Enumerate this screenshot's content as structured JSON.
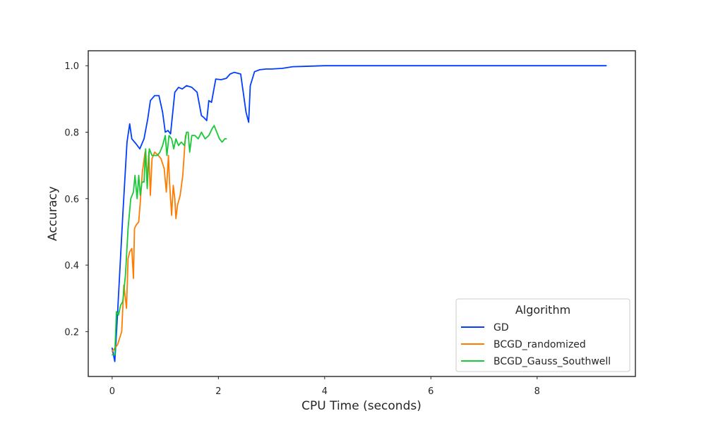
{
  "chart_data": {
    "type": "line",
    "title": "",
    "xlabel": "CPU Time (seconds)",
    "ylabel": "Accuracy",
    "xlim": [
      -0.45,
      9.85
    ],
    "ylim": [
      0.065,
      1.045
    ],
    "xticks": [
      0,
      2,
      4,
      6,
      8
    ],
    "yticks": [
      0.2,
      0.4,
      0.6,
      0.8,
      1.0
    ],
    "xtick_labels": [
      "0",
      "2",
      "4",
      "6",
      "8"
    ],
    "ytick_labels": [
      "0.2",
      "0.4",
      "0.6",
      "0.8",
      "1.0"
    ],
    "grid": false,
    "legend": {
      "title": "Algorithm",
      "placement": "lower-right"
    },
    "series": [
      {
        "name": "GD",
        "color": "#023eff",
        "x": [
          0.0,
          0.05,
          0.1,
          0.2,
          0.28,
          0.33,
          0.37,
          0.45,
          0.52,
          0.6,
          0.67,
          0.72,
          0.8,
          0.88,
          0.95,
          1.0,
          1.05,
          1.1,
          1.18,
          1.25,
          1.32,
          1.4,
          1.5,
          1.6,
          1.68,
          1.72,
          1.78,
          1.82,
          1.87,
          1.95,
          2.05,
          2.15,
          2.22,
          2.3,
          2.42,
          2.52,
          2.57,
          2.6,
          2.68,
          2.78,
          2.9,
          3.0,
          3.2,
          3.4,
          3.6,
          4.0,
          4.6,
          5.5,
          7.0,
          9.3
        ],
        "y": [
          0.15,
          0.11,
          0.25,
          0.55,
          0.77,
          0.825,
          0.78,
          0.765,
          0.75,
          0.78,
          0.84,
          0.895,
          0.91,
          0.91,
          0.86,
          0.8,
          0.805,
          0.795,
          0.92,
          0.935,
          0.93,
          0.94,
          0.935,
          0.92,
          0.85,
          0.845,
          0.835,
          0.895,
          0.89,
          0.96,
          0.958,
          0.962,
          0.975,
          0.98,
          0.975,
          0.86,
          0.83,
          0.94,
          0.982,
          0.988,
          0.99,
          0.99,
          0.992,
          0.997,
          0.998,
          1.0,
          1.0,
          1.0,
          1.0,
          1.0
        ]
      },
      {
        "name": "BCGD_randomized",
        "color": "#ff7c00",
        "x": [
          0.0,
          0.05,
          0.1,
          0.18,
          0.22,
          0.27,
          0.3,
          0.33,
          0.37,
          0.4,
          0.42,
          0.45,
          0.5,
          0.53,
          0.57,
          0.62,
          0.66,
          0.69,
          0.72,
          0.75,
          0.8,
          0.87,
          0.92,
          0.98,
          1.02,
          1.06,
          1.08,
          1.12,
          1.15,
          1.18,
          1.2,
          1.23,
          1.28,
          1.33,
          1.38
        ],
        "y": [
          0.14,
          0.15,
          0.16,
          0.2,
          0.34,
          0.27,
          0.42,
          0.44,
          0.45,
          0.36,
          0.51,
          0.52,
          0.53,
          0.59,
          0.68,
          0.74,
          0.66,
          0.74,
          0.61,
          0.72,
          0.74,
          0.73,
          0.72,
          0.69,
          0.62,
          0.73,
          0.65,
          0.55,
          0.64,
          0.6,
          0.54,
          0.58,
          0.61,
          0.67,
          0.79
        ]
      },
      {
        "name": "BCGD_Gauss_Southwell",
        "color": "#1ac938",
        "x": [
          0.0,
          0.05,
          0.08,
          0.12,
          0.16,
          0.2,
          0.25,
          0.3,
          0.35,
          0.4,
          0.43,
          0.47,
          0.5,
          0.53,
          0.56,
          0.6,
          0.63,
          0.66,
          0.7,
          0.75,
          0.8,
          0.85,
          0.9,
          0.95,
          1.0,
          1.03,
          1.07,
          1.12,
          1.16,
          1.2,
          1.25,
          1.3,
          1.36,
          1.4,
          1.43,
          1.46,
          1.5,
          1.56,
          1.62,
          1.68,
          1.75,
          1.82,
          1.88,
          1.92,
          1.97,
          2.02,
          2.07,
          2.12,
          2.15
        ],
        "y": [
          0.13,
          0.13,
          0.26,
          0.25,
          0.28,
          0.29,
          0.37,
          0.51,
          0.6,
          0.62,
          0.67,
          0.6,
          0.67,
          0.61,
          0.65,
          0.65,
          0.75,
          0.63,
          0.75,
          0.73,
          0.73,
          0.73,
          0.74,
          0.76,
          0.79,
          0.73,
          0.79,
          0.78,
          0.75,
          0.78,
          0.76,
          0.77,
          0.76,
          0.8,
          0.8,
          0.74,
          0.79,
          0.79,
          0.78,
          0.8,
          0.78,
          0.79,
          0.81,
          0.82,
          0.8,
          0.78,
          0.77,
          0.78,
          0.78
        ]
      }
    ]
  }
}
